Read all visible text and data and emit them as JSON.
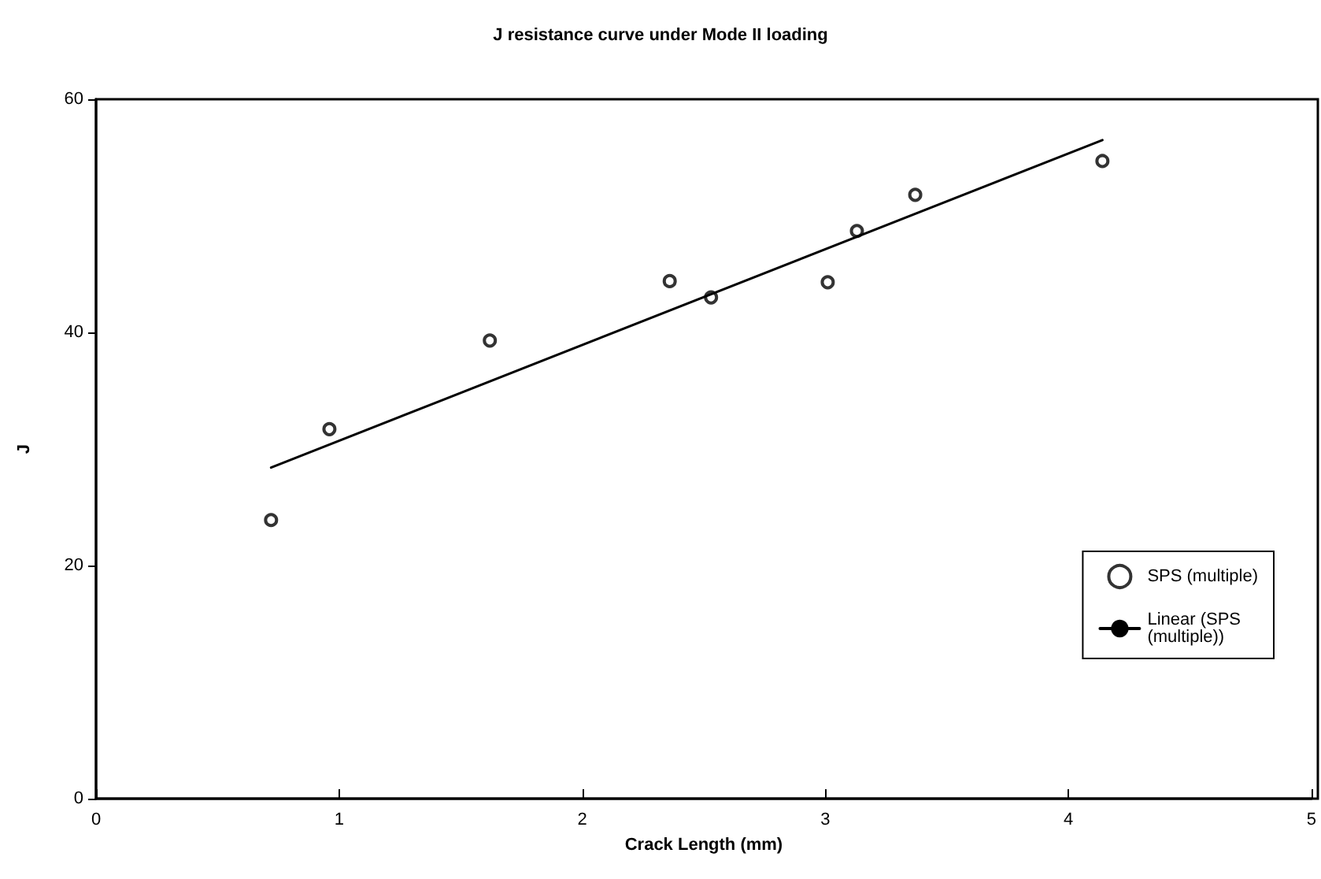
{
  "chart_data": {
    "type": "scatter",
    "title": "J resistance curve under Mode II loading",
    "xlabel": "Crack Length (mm)",
    "ylabel": "J",
    "xlim": [
      0,
      5
    ],
    "xticks": [
      0,
      1,
      2,
      3,
      4,
      5
    ],
    "ylim": [
      0,
      60
    ],
    "yticks": [
      0,
      20,
      40,
      60
    ],
    "grid": false,
    "legend": "right",
    "marker": "circle",
    "series": [
      {
        "name": "SPS (multiple)",
        "color": "#000000",
        "x": [
          0.72,
          0.96,
          1.62,
          2.36,
          2.53,
          3.01,
          3.13,
          3.37,
          4.14
        ],
        "values": [
          23.9,
          31.7,
          39.3,
          44.4,
          43.0,
          44.3,
          48.7,
          51.8,
          54.7
        ]
      },
      {
        "name": "Linear (SPS (multiple))",
        "type": "line",
        "color": "#000000",
        "line_style": "solid",
        "marker": "none",
        "x": [
          0.72,
          4.14
        ],
        "values": [
          28.4,
          56.5
        ]
      }
    ]
  }
}
